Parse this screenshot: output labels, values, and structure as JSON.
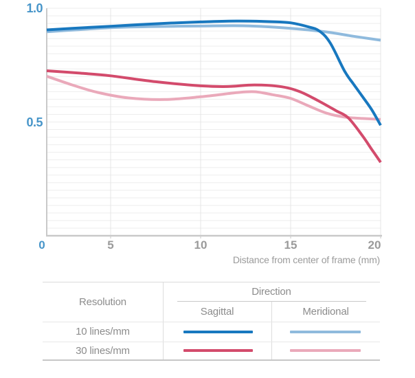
{
  "chart_data": {
    "type": "line",
    "title": "",
    "xlabel": "Distance from center of frame (mm)",
    "ylabel": "",
    "xlim": [
      0,
      20
    ],
    "ylim": [
      0,
      1.0
    ],
    "grid": true,
    "legend_position": "bottom-table",
    "x_tick_values": [
      0,
      5,
      10,
      15,
      20
    ],
    "y_tick_values": [
      1.0,
      0.5
    ],
    "series": [
      {
        "name": "10 lines/mm Sagittal",
        "color": "#1878bf",
        "points": [
          [
            0,
            0.905
          ],
          [
            2,
            0.912
          ],
          [
            5,
            0.921
          ],
          [
            7.5,
            0.932
          ],
          [
            10,
            0.94
          ],
          [
            12,
            0.944
          ],
          [
            14,
            0.941
          ],
          [
            15,
            0.936
          ],
          [
            16,
            0.918
          ],
          [
            16.6,
            0.9
          ],
          [
            17.2,
            0.848
          ],
          [
            18,
            0.724
          ],
          [
            18.5,
            0.667
          ],
          [
            19,
            0.612
          ],
          [
            19.5,
            0.556
          ],
          [
            20,
            0.487
          ]
        ]
      },
      {
        "name": "10 lines/mm Meridional",
        "color": "#8fbadd",
        "points": [
          [
            0,
            0.897
          ],
          [
            2.5,
            0.906
          ],
          [
            5,
            0.915
          ],
          [
            7.5,
            0.92
          ],
          [
            10,
            0.922
          ],
          [
            12.5,
            0.923
          ],
          [
            15,
            0.912
          ],
          [
            17,
            0.896
          ],
          [
            18.5,
            0.877
          ],
          [
            20,
            0.86
          ]
        ]
      },
      {
        "name": "30 lines/mm Sagittal",
        "color": "#d34b6c",
        "points": [
          [
            0,
            0.726
          ],
          [
            2.5,
            0.716
          ],
          [
            5,
            0.704
          ],
          [
            7.5,
            0.678
          ],
          [
            10,
            0.66
          ],
          [
            11.5,
            0.657
          ],
          [
            13,
            0.664
          ],
          [
            14.5,
            0.656
          ],
          [
            15.5,
            0.635
          ],
          [
            16.5,
            0.596
          ],
          [
            17.5,
            0.552
          ],
          [
            18.2,
            0.52
          ],
          [
            19,
            0.44
          ],
          [
            19.5,
            0.382
          ],
          [
            20,
            0.325
          ]
        ]
      },
      {
        "name": "30 lines/mm Meridional",
        "color": "#eaa9ba",
        "points": [
          [
            0,
            0.702
          ],
          [
            2,
            0.664
          ],
          [
            4,
            0.631
          ],
          [
            6,
            0.607
          ],
          [
            8,
            0.6
          ],
          [
            10,
            0.612
          ],
          [
            12,
            0.63
          ],
          [
            13,
            0.634
          ],
          [
            14,
            0.621
          ],
          [
            15,
            0.605
          ],
          [
            16,
            0.572
          ],
          [
            17,
            0.54
          ],
          [
            18,
            0.523
          ],
          [
            19,
            0.517
          ],
          [
            20,
            0.513
          ]
        ]
      }
    ]
  },
  "axis": {
    "y_labels": [
      "1.0",
      "0.5"
    ],
    "x_labels": [
      "0",
      "5",
      "10",
      "15",
      "20"
    ]
  },
  "legend": {
    "resolution_header": "Resolution",
    "direction_header": "Direction",
    "direction_columns": [
      "Sagittal",
      "Meridional"
    ],
    "rows": [
      {
        "label": "10 lines/mm",
        "sagittal_color": "#1878bf",
        "meridional_color": "#8fbadd"
      },
      {
        "label": "30 lines/mm",
        "sagittal_color": "#d34b6c",
        "meridional_color": "#eaa9ba"
      }
    ]
  },
  "colors": {
    "axis_label_blue": "#4795c9",
    "tick_label_gray": "#9a9a9a",
    "axis_line": "#c9c9c9",
    "gridline": "#ededed"
  }
}
